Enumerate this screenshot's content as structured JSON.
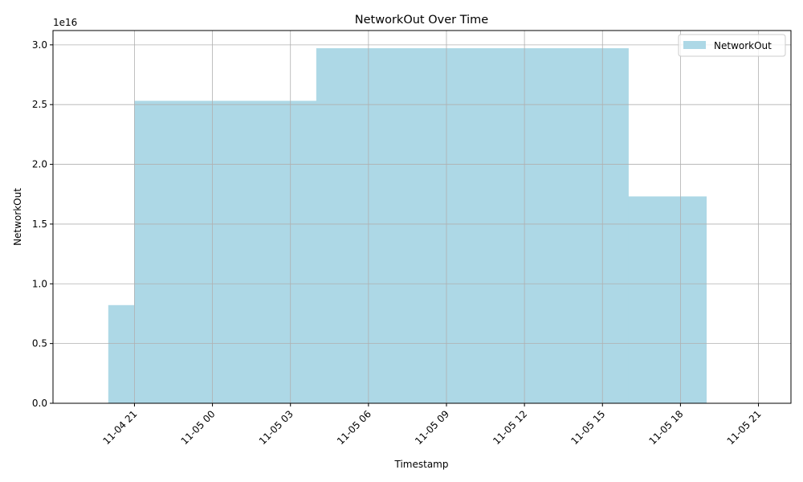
{
  "chart_data": {
    "type": "area",
    "title": "NetworkOut Over Time",
    "xlabel": "Timestamp",
    "ylabel": "NetworkOut",
    "y_offset_label": "1e16",
    "step": "post",
    "fill_color": "#add8e6",
    "grid": true,
    "legend": {
      "position": "top-right",
      "entries": [
        "NetworkOut"
      ]
    },
    "x_ticks": [
      "2024-11-04 21:00",
      "2024-11-05 00:00",
      "2024-11-05 03:00",
      "2024-11-05 06:00",
      "2024-11-05 09:00",
      "2024-11-05 12:00",
      "2024-11-05 15:00",
      "2024-11-05 18:00",
      "2024-11-05 21:00"
    ],
    "x_tick_labels": [
      "11-04 21",
      "11-05 00",
      "11-05 03",
      "11-05 06",
      "11-05 09",
      "11-05 12",
      "11-05 15",
      "11-05 18",
      "11-05 21"
    ],
    "xlim": [
      "2024-11-04 17:52",
      "2024-11-05 22:15"
    ],
    "y_ticks": [
      0,
      0.5,
      1.0,
      1.5,
      2.0,
      2.5,
      3.0
    ],
    "y_tick_labels": [
      "0.0",
      "0.5",
      "1.0",
      "1.5",
      "2.0",
      "2.5",
      "3.0"
    ],
    "ylim": [
      0,
      3.12
    ],
    "series": [
      {
        "name": "NetworkOut",
        "x": [
          "2024-11-04 20:00",
          "2024-11-04 21:00",
          "2024-11-05 04:00",
          "2024-11-05 16:00",
          "2024-11-05 19:00"
        ],
        "values": [
          0.82,
          2.53,
          2.97,
          1.73,
          0
        ]
      }
    ]
  }
}
